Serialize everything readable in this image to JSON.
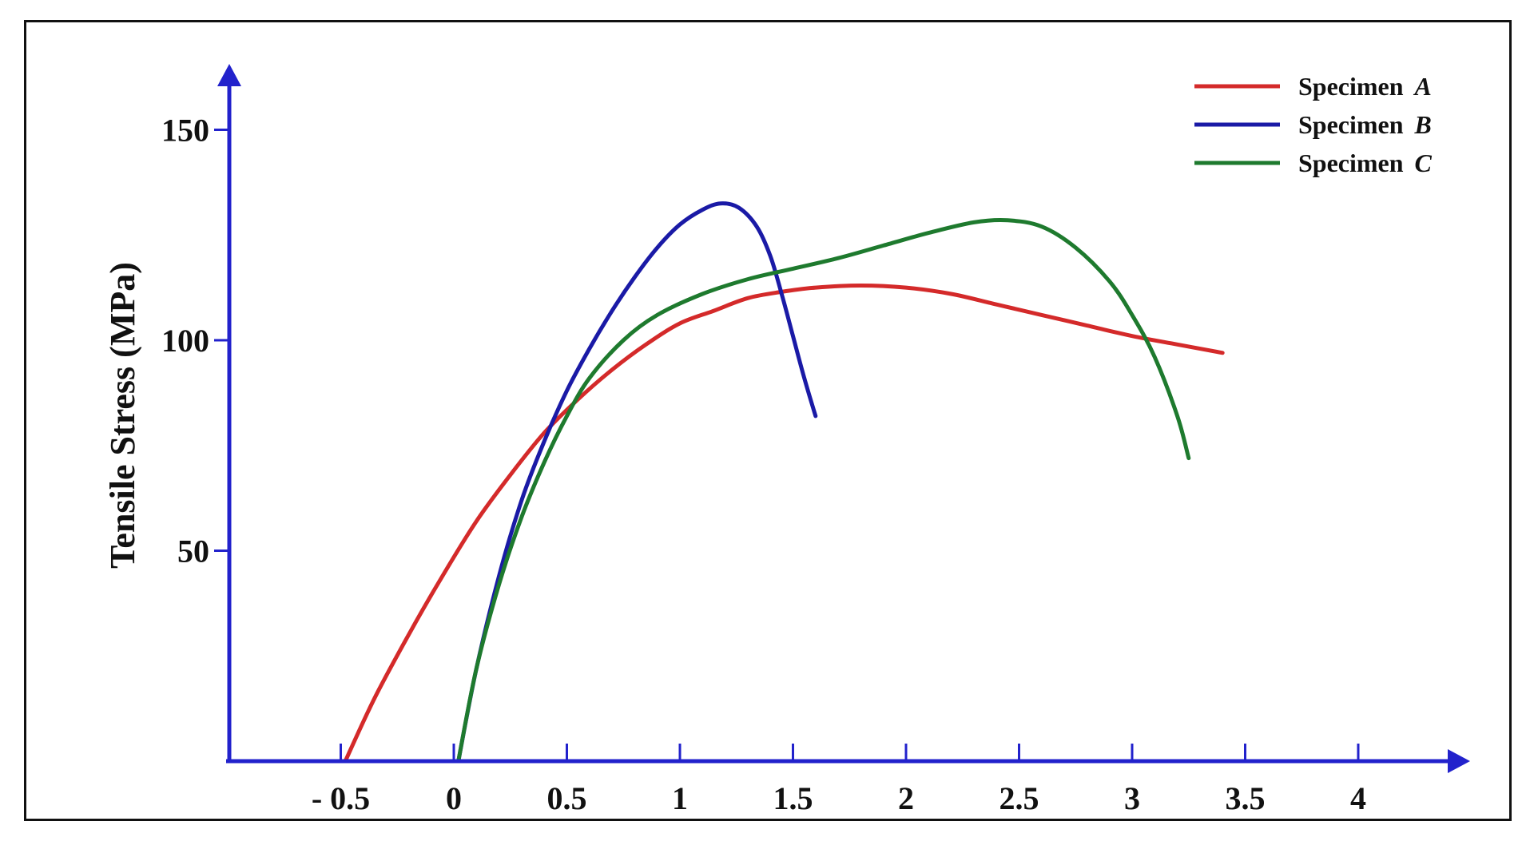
{
  "chart_data": {
    "type": "line",
    "title": "",
    "xlabel": "",
    "ylabel": "Tensile Stress (MPa)",
    "xlim": [
      -1.0,
      4.5
    ],
    "ylim": [
      0,
      165
    ],
    "x_ticks": [
      {
        "value": -0.5,
        "label": "- 0.5"
      },
      {
        "value": 0,
        "label": "0"
      },
      {
        "value": 0.5,
        "label": "0.5"
      },
      {
        "value": 1,
        "label": "1"
      },
      {
        "value": 1.5,
        "label": "1.5"
      },
      {
        "value": 2,
        "label": "2"
      },
      {
        "value": 2.5,
        "label": "2.5"
      },
      {
        "value": 3,
        "label": "3"
      },
      {
        "value": 3.5,
        "label": "3.5"
      },
      {
        "value": 4,
        "label": "4"
      }
    ],
    "y_ticks": [
      {
        "value": 50,
        "label": "50"
      },
      {
        "value": 100,
        "label": "100"
      },
      {
        "value": 150,
        "label": "150"
      }
    ],
    "grid": false,
    "legend_position": "top-right",
    "series": [
      {
        "name": "Specimen",
        "name_letter": "A",
        "color": "#d42a2a",
        "points": [
          [
            -0.48,
            0
          ],
          [
            -0.35,
            15
          ],
          [
            -0.2,
            30
          ],
          [
            -0.05,
            44
          ],
          [
            0.1,
            57
          ],
          [
            0.25,
            68
          ],
          [
            0.4,
            78
          ],
          [
            0.55,
            86
          ],
          [
            0.7,
            93
          ],
          [
            0.85,
            99
          ],
          [
            1.0,
            104
          ],
          [
            1.15,
            107
          ],
          [
            1.3,
            110
          ],
          [
            1.45,
            111.5
          ],
          [
            1.6,
            112.5
          ],
          [
            1.8,
            113
          ],
          [
            2.0,
            112.5
          ],
          [
            2.2,
            111
          ],
          [
            2.4,
            108.5
          ],
          [
            2.6,
            106
          ],
          [
            2.8,
            103.5
          ],
          [
            3.0,
            101
          ],
          [
            3.2,
            99
          ],
          [
            3.4,
            97
          ]
        ]
      },
      {
        "name": "Specimen",
        "name_letter": "B",
        "color": "#1a1aa6",
        "points": [
          [
            0.02,
            0
          ],
          [
            0.1,
            22
          ],
          [
            0.2,
            44
          ],
          [
            0.3,
            62
          ],
          [
            0.4,
            76
          ],
          [
            0.5,
            88
          ],
          [
            0.6,
            98
          ],
          [
            0.7,
            107
          ],
          [
            0.8,
            115
          ],
          [
            0.9,
            122
          ],
          [
            1.0,
            127.5
          ],
          [
            1.1,
            131
          ],
          [
            1.18,
            132.5
          ],
          [
            1.26,
            131.5
          ],
          [
            1.34,
            127
          ],
          [
            1.4,
            120
          ],
          [
            1.45,
            111
          ],
          [
            1.5,
            101
          ],
          [
            1.55,
            91
          ],
          [
            1.6,
            82
          ]
        ]
      },
      {
        "name": "Specimen",
        "name_letter": "C",
        "color": "#1e7a2e",
        "points": [
          [
            0.02,
            0
          ],
          [
            0.1,
            22
          ],
          [
            0.2,
            42
          ],
          [
            0.3,
            58
          ],
          [
            0.4,
            71
          ],
          [
            0.5,
            82
          ],
          [
            0.6,
            91
          ],
          [
            0.75,
            100
          ],
          [
            0.9,
            106
          ],
          [
            1.1,
            111
          ],
          [
            1.3,
            114.5
          ],
          [
            1.5,
            117
          ],
          [
            1.7,
            119.5
          ],
          [
            1.9,
            122.5
          ],
          [
            2.1,
            125.5
          ],
          [
            2.3,
            128
          ],
          [
            2.45,
            128.5
          ],
          [
            2.6,
            127
          ],
          [
            2.75,
            122
          ],
          [
            2.9,
            114
          ],
          [
            3.0,
            106
          ],
          [
            3.1,
            96
          ],
          [
            3.2,
            82
          ],
          [
            3.25,
            72
          ]
        ]
      }
    ]
  }
}
